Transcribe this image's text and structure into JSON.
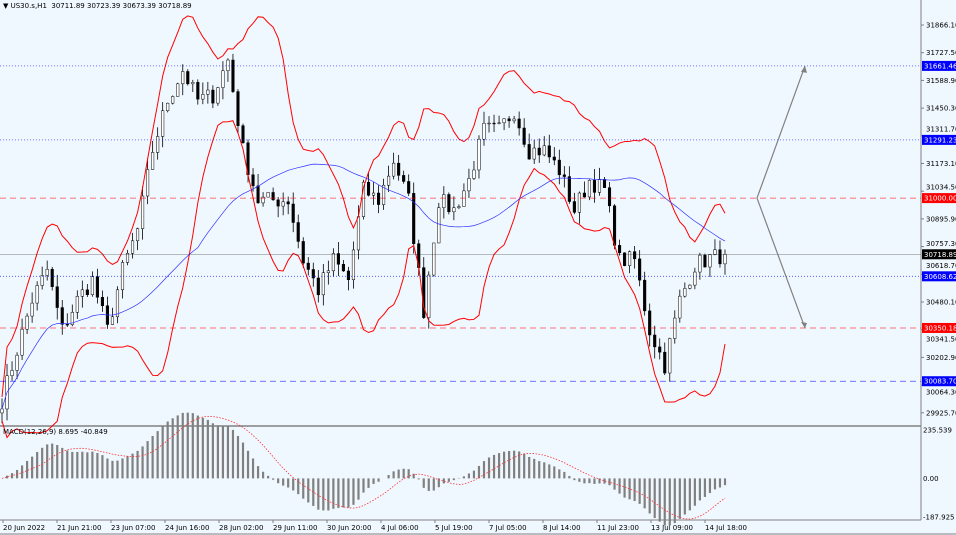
{
  "header": {
    "symbol": "US30.s,H1",
    "ohlc": "30711.89 30723.39 30673.39 30718.89"
  },
  "colors": {
    "background": "#f0f8ff",
    "bands": "#ff0000",
    "ma": "#3030ff",
    "candles": "#000000",
    "macd_hist": "#808080",
    "macd_signal": "#ff3030",
    "blue_level": "#0000ff",
    "red_level": "#ff0000"
  },
  "chart_data": {
    "type": "candlestick",
    "title": "US30.s,H1",
    "price_axis": {
      "ticks": [
        31866.1,
        31727.5,
        31588.9,
        31450.3,
        31311.7,
        31173.1,
        31034.5,
        30895.9,
        30757.3,
        30618.7,
        30480.1,
        30341.5,
        30202.9,
        30064.3,
        29925.7
      ],
      "ylim": [
        29870,
        32000
      ]
    },
    "time_axis": {
      "ticks": [
        "20 Jun 2022",
        "21 Jun 21:00",
        "23 Jun 07:00",
        "24 Jun 16:00",
        "28 Jun 02:00",
        "29 Jun 11:00",
        "30 Jun 20:00",
        "4 Jul 06:00",
        "5 Jul 19:00",
        "7 Jul 05:00",
        "8 Jul 14:00",
        "11 Jul 23:00",
        "13 Jul 09:00",
        "14 Jul 18:00"
      ]
    },
    "closes": [
      29990,
      30240,
      30490,
      30640,
      30340,
      30490,
      30590,
      30340,
      30640,
      30840,
      31240,
      31490,
      31640,
      31490,
      31515,
      31690,
      31240,
      30990,
      30990,
      30990,
      30690,
      30540,
      30690,
      30590,
      31040,
      30990,
      31190,
      30990,
      30440,
      30990,
      30940,
      31090,
      31340,
      31340,
      31440,
      31240,
      31240,
      31140,
      30940,
      31090,
      31040,
      30690,
      30690,
      30340,
      30165,
      30490,
      30665,
      30700,
      30718.89
    ],
    "current_price": 30718.89,
    "levels": [
      {
        "price": 31661.46,
        "label": "31661.46",
        "style": "dotted",
        "color": "#0000ff"
      },
      {
        "price": 31291.23,
        "label": "31291.23",
        "style": "dotted",
        "color": "#0000ff"
      },
      {
        "price": 31000.0,
        "label": "31000.00",
        "style": "dashed",
        "color": "#ff0000"
      },
      {
        "price": 30718.89,
        "label": "30718.89",
        "style": "solid",
        "color": "#000000"
      },
      {
        "price": 30608.62,
        "label": "30608.62",
        "style": "dotted",
        "color": "#0000ff"
      },
      {
        "price": 30350.18,
        "label": "30350.18",
        "style": "dashed",
        "color": "#ff0000"
      },
      {
        "price": 30083.7,
        "label": "30083.70",
        "style": "dashed",
        "color": "#0000ff"
      }
    ],
    "projections": [
      {
        "from": 31000,
        "to": 31661.46
      },
      {
        "from": 31000,
        "to": 30350.18
      }
    ],
    "indicators": {
      "bollinger": "bands",
      "moving_average": "blue"
    },
    "macd": {
      "label": "MACD(12,26,9) 8.695 -40.849",
      "ticks": [
        "235.539",
        "0.00",
        "-187.925"
      ],
      "ylim": [
        -187.925,
        235.539
      ]
    }
  }
}
